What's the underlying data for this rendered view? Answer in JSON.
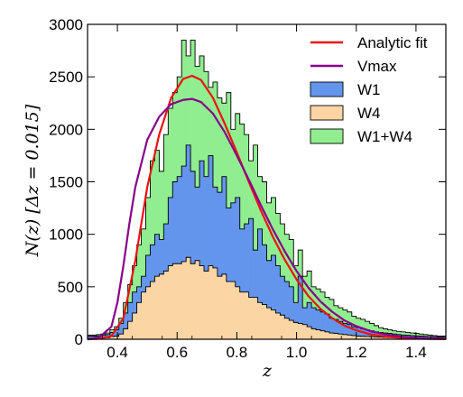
{
  "chart_data": {
    "type": "histogram",
    "title": "",
    "xlabel": "z",
    "ylabel": "N(z)  [Δz = 0.015]",
    "xlim": [
      0.3,
      1.5
    ],
    "ylim": [
      0,
      3000
    ],
    "x_ticks": [
      "0.4",
      "0.6",
      "0.8",
      "1.0",
      "1.2",
      "1.4"
    ],
    "y_ticks": [
      "0",
      "500",
      "1000",
      "1500",
      "2000",
      "2500",
      "3000"
    ],
    "grid": false,
    "legend_position": "top-right",
    "bin_width": 0.015,
    "bin_start": 0.3,
    "colors": {
      "analytic_fit": "#ee1111",
      "vmax": "#880088",
      "w1": "#6495ed",
      "w4": "#fcd5a4",
      "w1w4": "#90ee90"
    },
    "series": [
      {
        "name": "W1+W4",
        "kind": "histogram",
        "values": [
          40,
          40,
          45,
          50,
          60,
          90,
          120,
          200,
          350,
          520,
          700,
          900,
          1050,
          1350,
          1700,
          1800,
          1600,
          1950,
          2200,
          2350,
          2500,
          2850,
          2700,
          2850,
          2600,
          2700,
          2550,
          2400,
          2450,
          2300,
          2250,
          2350,
          2000,
          2150,
          2050,
          1950,
          1700,
          1850,
          1550,
          1500,
          1300,
          1350,
          1200,
          1100,
          1000,
          950,
          700,
          850,
          600,
          650,
          500,
          480,
          450,
          400,
          380,
          320,
          300,
          280,
          260,
          220,
          200,
          190,
          170,
          150,
          130,
          110,
          100,
          90,
          80,
          75,
          70,
          65,
          60,
          55,
          50,
          45,
          40,
          35,
          30,
          30
        ]
      },
      {
        "name": "W1",
        "kind": "histogram",
        "values": [
          30,
          30,
          33,
          37,
          45,
          65,
          90,
          150,
          250,
          350,
          450,
          500,
          600,
          800,
          900,
          1000,
          950,
          1100,
          1350,
          1500,
          1550,
          1650,
          1850,
          1600,
          1450,
          1700,
          1550,
          1750,
          1450,
          1400,
          1550,
          1250,
          1300,
          1350,
          1050,
          1100,
          1150,
          850,
          1050,
          900,
          750,
          800,
          700,
          600,
          550,
          500,
          350,
          600,
          300,
          350,
          300,
          280,
          260,
          240,
          200,
          190,
          170,
          150,
          140,
          120,
          110,
          100,
          90,
          80,
          70,
          65,
          60,
          55,
          50,
          45,
          40,
          38,
          35,
          32,
          30,
          28,
          26,
          24,
          22,
          20
        ]
      },
      {
        "name": "W4",
        "kind": "histogram",
        "values": [
          10,
          10,
          12,
          13,
          15,
          25,
          30,
          50,
          100,
          170,
          250,
          350,
          450,
          500,
          550,
          600,
          620,
          650,
          700,
          720,
          720,
          740,
          780,
          720,
          750,
          700,
          650,
          700,
          680,
          600,
          620,
          550,
          550,
          500,
          450,
          450,
          400,
          400,
          350,
          330,
          300,
          280,
          250,
          230,
          200,
          180,
          160,
          150,
          140,
          120,
          100,
          90,
          80,
          70,
          60,
          55,
          50,
          45,
          40,
          35,
          30,
          28,
          26,
          24,
          22,
          20,
          18,
          16,
          15,
          14,
          13,
          12,
          11,
          10,
          10,
          10,
          10,
          10,
          10,
          10
        ]
      },
      {
        "name": "Analytic fit",
        "kind": "line",
        "x": [
          0.3,
          0.34,
          0.38,
          0.42,
          0.46,
          0.5,
          0.54,
          0.58,
          0.62,
          0.65,
          0.68,
          0.72,
          0.76,
          0.8,
          0.84,
          0.88,
          0.92,
          0.96,
          1.0,
          1.04,
          1.08,
          1.12,
          1.16,
          1.2,
          1.25,
          1.3,
          1.35,
          1.4,
          1.45,
          1.5
        ],
        "y": [
          0,
          5,
          30,
          200,
          750,
          1450,
          1950,
          2300,
          2480,
          2510,
          2470,
          2300,
          2050,
          1780,
          1500,
          1230,
          980,
          760,
          570,
          410,
          290,
          200,
          130,
          85,
          45,
          25,
          12,
          6,
          3,
          1
        ]
      },
      {
        "name": "Vmax",
        "kind": "line",
        "x": [
          0.3,
          0.34,
          0.38,
          0.4,
          0.42,
          0.44,
          0.46,
          0.5,
          0.54,
          0.58,
          0.62,
          0.65,
          0.68,
          0.72,
          0.76,
          0.8,
          0.84,
          0.88,
          0.92,
          0.96,
          1.0,
          1.04,
          1.08,
          1.12,
          1.16,
          1.2,
          1.25,
          1.3,
          1.35,
          1.4,
          1.45,
          1.5
        ],
        "y": [
          0,
          20,
          120,
          350,
          700,
          1100,
          1450,
          1900,
          2120,
          2240,
          2280,
          2290,
          2260,
          2150,
          1970,
          1750,
          1520,
          1280,
          1050,
          840,
          650,
          490,
          360,
          260,
          180,
          125,
          75,
          45,
          25,
          15,
          8,
          4
        ]
      }
    ]
  }
}
